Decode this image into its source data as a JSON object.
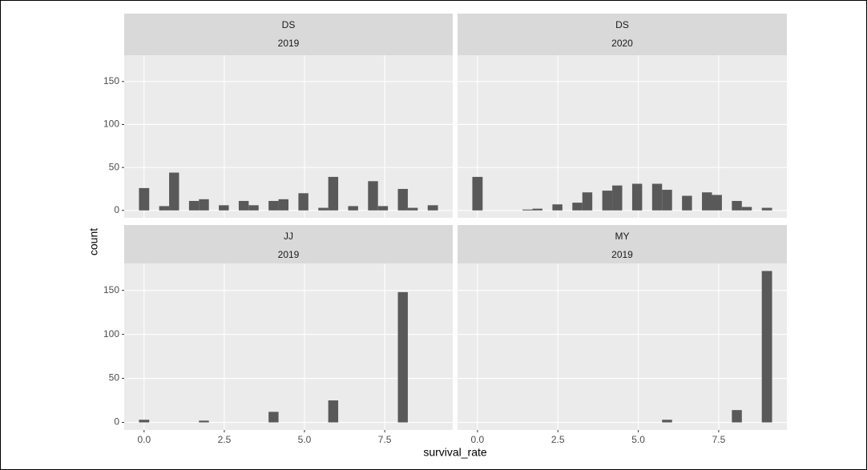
{
  "x_label": "survival_rate",
  "y_label": "count",
  "chart_data": [
    {
      "type": "histogram",
      "facet": [
        "DS",
        "2019"
      ],
      "color": "#595959",
      "grid": true,
      "bins": [
        -0.16,
        0.16,
        0.47,
        0.78,
        1.09,
        1.4,
        1.71,
        2.02,
        2.33,
        2.64,
        2.95,
        3.26,
        3.57,
        3.88,
        4.19,
        4.5,
        4.81,
        5.12,
        5.43,
        5.74,
        6.05,
        6.36,
        6.67,
        6.98,
        7.29,
        7.6,
        7.91,
        8.22,
        8.53,
        8.84,
        9.16
      ],
      "counts": [
        26,
        0,
        5,
        44,
        0,
        11,
        13,
        0,
        6,
        0,
        11,
        6,
        0,
        11,
        13,
        0,
        20,
        0,
        3,
        39,
        0,
        5,
        0,
        34,
        5,
        0,
        25,
        3,
        0,
        6
      ],
      "xlim": [
        -0.62,
        9.62
      ],
      "ylim": [
        -8.6,
        180.6
      ],
      "xticks": [
        {
          "value": 0,
          "label": "0.0"
        },
        2.5,
        {
          "value": 5,
          "label": "5.0"
        },
        7.5
      ],
      "yticks": [
        0,
        50,
        100,
        150
      ]
    },
    {
      "type": "histogram",
      "facet": [
        "DS",
        "2020"
      ],
      "color": "#595959",
      "grid": true,
      "bins": [
        -0.16,
        0.16,
        0.47,
        0.78,
        1.09,
        1.4,
        1.71,
        2.02,
        2.33,
        2.64,
        2.95,
        3.26,
        3.57,
        3.88,
        4.19,
        4.5,
        4.81,
        5.12,
        5.43,
        5.74,
        6.05,
        6.36,
        6.67,
        6.98,
        7.29,
        7.6,
        7.91,
        8.22,
        8.53,
        8.84,
        9.16
      ],
      "counts": [
        39,
        0,
        0,
        0,
        0,
        1,
        2,
        0,
        7,
        0,
        9,
        21,
        0,
        23,
        29,
        0,
        31,
        0,
        31,
        24,
        0,
        17,
        0,
        21,
        18,
        0,
        11,
        4,
        0,
        3
      ],
      "xlim": [
        -0.62,
        9.62
      ],
      "ylim": [
        -8.6,
        180.6
      ],
      "xticks": [
        {
          "value": 0,
          "label": "0.0"
        },
        2.5,
        {
          "value": 5,
          "label": "5.0"
        },
        7.5
      ],
      "yticks": [
        0,
        50,
        100,
        150
      ]
    },
    {
      "type": "histogram",
      "facet": [
        "JJ",
        "2019"
      ],
      "color": "#595959",
      "grid": true,
      "bins": [
        -0.16,
        0.16,
        0.47,
        0.78,
        1.09,
        1.4,
        1.71,
        2.02,
        2.33,
        2.64,
        2.95,
        3.26,
        3.57,
        3.88,
        4.19,
        4.5,
        4.81,
        5.12,
        5.43,
        5.74,
        6.05,
        6.36,
        6.67,
        6.98,
        7.29,
        7.6,
        7.91,
        8.22,
        8.53,
        8.84,
        9.16
      ],
      "counts": [
        3,
        0,
        0,
        0,
        0,
        0,
        2,
        0,
        0,
        0,
        0,
        0,
        0,
        12,
        0,
        0,
        0,
        0,
        0,
        25,
        0,
        0,
        0,
        0,
        0,
        0,
        148,
        0,
        0,
        0
      ],
      "xlim": [
        -0.62,
        9.62
      ],
      "ylim": [
        -8.6,
        180.6
      ],
      "xticks": [
        {
          "value": 0,
          "label": "0.0"
        },
        2.5,
        {
          "value": 5,
          "label": "5.0"
        },
        7.5
      ],
      "yticks": [
        0,
        50,
        100,
        150
      ]
    },
    {
      "type": "histogram",
      "facet": [
        "MY",
        "2019"
      ],
      "color": "#595959",
      "grid": true,
      "bins": [
        -0.16,
        0.16,
        0.47,
        0.78,
        1.09,
        1.4,
        1.71,
        2.02,
        2.33,
        2.64,
        2.95,
        3.26,
        3.57,
        3.88,
        4.19,
        4.5,
        4.81,
        5.12,
        5.43,
        5.74,
        6.05,
        6.36,
        6.67,
        6.98,
        7.29,
        7.6,
        7.91,
        8.22,
        8.53,
        8.84,
        9.16
      ],
      "counts": [
        0,
        0,
        0,
        0,
        0,
        0,
        0,
        0,
        0,
        0,
        0,
        0,
        0,
        0,
        0,
        0,
        0,
        0,
        0,
        3,
        0,
        0,
        0,
        0,
        0,
        0,
        14,
        0,
        0,
        172
      ],
      "xlim": [
        -0.62,
        9.62
      ],
      "ylim": [
        -8.6,
        180.6
      ],
      "xticks": [
        {
          "value": 0,
          "label": "0.0"
        },
        2.5,
        {
          "value": 5,
          "label": "5.0"
        },
        7.5
      ],
      "yticks": [
        0,
        50,
        100,
        150
      ]
    }
  ]
}
